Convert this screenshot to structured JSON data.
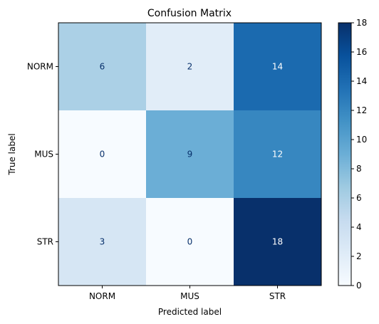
{
  "chart_data": {
    "type": "heatmap",
    "title": "Confusion Matrix",
    "xlabel": "Predicted label",
    "ylabel": "True label",
    "x_categories": [
      "NORM",
      "MUS",
      "STR"
    ],
    "y_categories": [
      "NORM",
      "MUS",
      "STR"
    ],
    "values": [
      [
        6,
        2,
        14
      ],
      [
        0,
        9,
        12
      ],
      [
        3,
        0,
        18
      ]
    ],
    "colormap": "Blues",
    "color_range": [
      0,
      18
    ],
    "colorbar_ticks": [
      0,
      2,
      4,
      6,
      8,
      10,
      12,
      14,
      16,
      18
    ],
    "label_color_dark": "#08306b",
    "label_color_light": "#ffffff"
  }
}
